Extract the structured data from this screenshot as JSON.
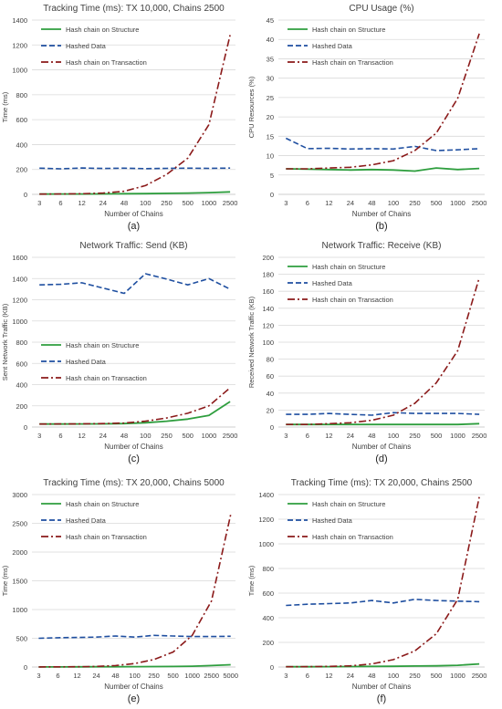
{
  "colors": {
    "structure": "#2e9e3e",
    "hashed": "#1f4fa0",
    "transaction": "#8b1a1a",
    "grid": "#d9d9d9",
    "axis": "#bfbfbf",
    "text": "#404040"
  },
  "chart_data": [
    {
      "id": "a",
      "type": "line",
      "title": "Tracking Time (ms): TX 10,000, Chains 2500",
      "xlabel": "Number of Chains",
      "ylabel": "Time (ms)",
      "caption": "(a)",
      "categories": [
        "3",
        "6",
        "12",
        "24",
        "48",
        "100",
        "250",
        "500",
        "1000",
        "2500"
      ],
      "ylim": [
        0,
        1400
      ],
      "yticks": [
        "0",
        "200",
        "400",
        "600",
        "800",
        "1000",
        "1200",
        "1400"
      ],
      "grid": true,
      "legend": "top-left",
      "series": [
        {
          "name": "Hash chain on Structure",
          "values": [
            2,
            3,
            3,
            4,
            5,
            6,
            8,
            10,
            14,
            20
          ]
        },
        {
          "name": "Hashed Data",
          "values": [
            210,
            205,
            212,
            208,
            210,
            207,
            209,
            210,
            209,
            211
          ]
        },
        {
          "name": "Hash chain on Transaction",
          "values": [
            2,
            3,
            5,
            10,
            25,
            70,
            160,
            290,
            560,
            1280
          ]
        }
      ]
    },
    {
      "id": "b",
      "type": "line",
      "title": "CPU Usage (%)",
      "xlabel": "Number of Chains",
      "ylabel": "CPU Resources (%)",
      "caption": "(b)",
      "categories": [
        "3",
        "6",
        "12",
        "24",
        "48",
        "100",
        "250",
        "500",
        "1000",
        "2500"
      ],
      "ylim": [
        0,
        45
      ],
      "yticks": [
        "0",
        "5",
        "10",
        "15",
        "20",
        "25",
        "30",
        "35",
        "40",
        "45"
      ],
      "grid": true,
      "legend": "top-left",
      "series": [
        {
          "name": "Hash chain on Structure",
          "values": [
            6.6,
            6.5,
            6.4,
            6.3,
            6.4,
            6.3,
            6.0,
            6.8,
            6.4,
            6.7
          ]
        },
        {
          "name": "Hashed Data",
          "values": [
            14.5,
            11.8,
            11.9,
            11.7,
            11.8,
            11.7,
            12.4,
            11.3,
            11.5,
            11.8
          ]
        },
        {
          "name": "Hash chain on Transaction",
          "values": [
            6.6,
            6.6,
            6.8,
            7.0,
            7.6,
            8.7,
            11.3,
            15.8,
            24.8,
            41.5
          ]
        }
      ]
    },
    {
      "id": "c",
      "type": "line",
      "title": "Network Traffic: Send (KB)",
      "xlabel": "Number of Chains",
      "ylabel": "Sent Network Traffic (KB)",
      "caption": "(c)",
      "categories": [
        "3",
        "6",
        "12",
        "24",
        "48",
        "100",
        "250",
        "500",
        "1000",
        "2500"
      ],
      "ylim": [
        0,
        1600
      ],
      "yticks": [
        "0",
        "200",
        "400",
        "600",
        "800",
        "1000",
        "1200",
        "1400",
        "1600"
      ],
      "grid": true,
      "legend": "middle-left",
      "series": [
        {
          "name": "Hash chain on Structure",
          "values": [
            28,
            28,
            29,
            30,
            33,
            40,
            55,
            75,
            110,
            240
          ]
        },
        {
          "name": "Hashed Data",
          "values": [
            1340,
            1345,
            1360,
            1310,
            1260,
            1445,
            1395,
            1340,
            1400,
            1300
          ]
        },
        {
          "name": "Hash chain on Transaction",
          "values": [
            28,
            29,
            30,
            33,
            38,
            55,
            85,
            130,
            200,
            370
          ]
        }
      ]
    },
    {
      "id": "d",
      "type": "line",
      "title": "Network Traffic: Receive (KB)",
      "xlabel": "Number of Chains",
      "ylabel": "Received Network Traffic (KB)",
      "caption": "(d)",
      "categories": [
        "3",
        "6",
        "12",
        "24",
        "48",
        "100",
        "250",
        "500",
        "1000",
        "2500"
      ],
      "ylim": [
        0,
        200
      ],
      "yticks": [
        "0",
        "20",
        "40",
        "60",
        "80",
        "100",
        "120",
        "140",
        "160",
        "180",
        "200"
      ],
      "grid": true,
      "legend": "top-left",
      "series": [
        {
          "name": "Hash chain on Structure",
          "values": [
            3,
            3,
            3,
            3,
            3,
            3,
            3,
            3,
            3,
            4
          ]
        },
        {
          "name": "Hashed Data",
          "values": [
            15,
            15,
            16,
            15,
            14,
            17,
            16,
            16,
            16,
            15
          ]
        },
        {
          "name": "Hash chain on Transaction",
          "values": [
            3,
            3,
            4,
            5,
            8,
            14,
            28,
            52,
            90,
            176
          ]
        }
      ]
    },
    {
      "id": "e",
      "type": "line",
      "title": "Tracking Time (ms): TX 20,000, Chains 5000",
      "xlabel": "Number of Chains",
      "ylabel": "Time (ms)",
      "caption": "(e)",
      "categories": [
        "3",
        "6",
        "12",
        "24",
        "48",
        "100",
        "250",
        "500",
        "1000",
        "2500",
        "5000"
      ],
      "ylim": [
        0,
        3000
      ],
      "yticks": [
        "0",
        "500",
        "1000",
        "1500",
        "2000",
        "2500",
        "3000"
      ],
      "grid": true,
      "legend": "top-left",
      "series": [
        {
          "name": "Hash chain on Structure",
          "values": [
            2,
            2,
            3,
            4,
            5,
            6,
            8,
            10,
            15,
            25,
            40
          ]
        },
        {
          "name": "Hashed Data",
          "values": [
            500,
            510,
            515,
            520,
            540,
            520,
            550,
            540,
            530,
            530,
            535
          ]
        },
        {
          "name": "Hash chain on Transaction",
          "values": [
            2,
            3,
            5,
            10,
            25,
            60,
            130,
            260,
            550,
            1150,
            2650
          ]
        }
      ]
    },
    {
      "id": "f",
      "type": "line",
      "title": "Tracking Time (ms): TX 20,000, Chains 2500",
      "xlabel": "Number of Chains",
      "ylabel": "Time (ms)",
      "caption": "(f)",
      "categories": [
        "3",
        "6",
        "12",
        "24",
        "48",
        "100",
        "250",
        "500",
        "1000",
        "2500"
      ],
      "ylim": [
        0,
        1400
      ],
      "yticks": [
        "0",
        "200",
        "400",
        "600",
        "800",
        "1000",
        "1200",
        "1400"
      ],
      "grid": true,
      "legend": "top-left",
      "series": [
        {
          "name": "Hash chain on Structure",
          "values": [
            2,
            2,
            3,
            4,
            5,
            6,
            8,
            10,
            14,
            25
          ]
        },
        {
          "name": "Hashed Data",
          "values": [
            500,
            510,
            515,
            520,
            540,
            520,
            550,
            540,
            535,
            530
          ]
        },
        {
          "name": "Hash chain on Transaction",
          "values": [
            2,
            3,
            5,
            10,
            25,
            60,
            130,
            270,
            550,
            1380
          ]
        }
      ]
    }
  ]
}
